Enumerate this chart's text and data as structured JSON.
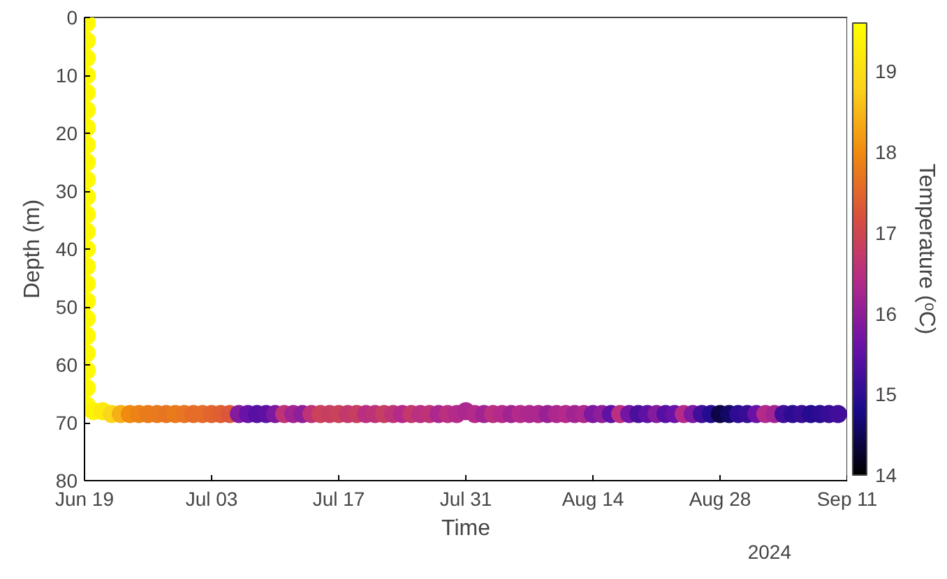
{
  "chart_data": {
    "type": "scatter",
    "xlabel": "Time",
    "ylabel": "Depth (m)",
    "clabel": "Temperature (ᵒC)",
    "annotations": [
      "2024"
    ],
    "xlim": [
      "2024-06-19",
      "2024-09-11"
    ],
    "xticks": [
      {
        "value": "2024-06-19",
        "label": "Jun 19"
      },
      {
        "value": "2024-07-03",
        "label": "Jul 03"
      },
      {
        "value": "2024-07-17",
        "label": "Jul 17"
      },
      {
        "value": "2024-07-31",
        "label": "Jul 31"
      },
      {
        "value": "2024-08-14",
        "label": "Aug 14"
      },
      {
        "value": "2024-08-28",
        "label": "Aug 28"
      },
      {
        "value": "2024-09-11",
        "label": "Sep 11"
      }
    ],
    "ylim": [
      80,
      0
    ],
    "yticks": [
      0,
      10,
      20,
      30,
      40,
      50,
      60,
      70,
      80
    ],
    "clim": [
      14,
      19.6
    ],
    "cticks": [
      14,
      15,
      16,
      17,
      18,
      19
    ],
    "grid": false,
    "marker": "circle",
    "x": [
      "2024-06-19T06:00",
      "2024-06-19T06:00",
      "2024-06-19T06:00",
      "2024-06-19T06:00",
      "2024-06-19T06:00",
      "2024-06-19T06:00",
      "2024-06-19T06:00",
      "2024-06-19T06:00",
      "2024-06-19T06:00",
      "2024-06-19T06:00",
      "2024-06-19T06:00",
      "2024-06-19T06:00",
      "2024-06-19T06:00",
      "2024-06-19T06:00",
      "2024-06-19T06:00",
      "2024-06-19T06:00",
      "2024-06-19T06:00",
      "2024-06-19T06:00",
      "2024-06-19T06:00",
      "2024-06-19T06:00",
      "2024-06-19T06:00",
      "2024-06-19T06:00",
      "2024-06-19T06:00",
      "2024-06-20",
      "2024-06-21",
      "2024-06-22",
      "2024-06-23",
      "2024-06-24",
      "2024-06-25",
      "2024-06-26",
      "2024-06-27",
      "2024-06-28",
      "2024-06-29",
      "2024-06-30",
      "2024-07-01",
      "2024-07-02",
      "2024-07-03",
      "2024-07-04",
      "2024-07-05",
      "2024-07-06",
      "2024-07-07",
      "2024-07-08",
      "2024-07-09",
      "2024-07-10",
      "2024-07-11",
      "2024-07-12",
      "2024-07-13",
      "2024-07-14",
      "2024-07-15",
      "2024-07-16",
      "2024-07-17",
      "2024-07-18",
      "2024-07-19",
      "2024-07-20",
      "2024-07-21",
      "2024-07-22",
      "2024-07-23",
      "2024-07-24",
      "2024-07-25",
      "2024-07-26",
      "2024-07-27",
      "2024-07-28",
      "2024-07-29",
      "2024-07-30",
      "2024-07-31",
      "2024-08-01",
      "2024-08-02",
      "2024-08-03",
      "2024-08-04",
      "2024-08-05",
      "2024-08-06",
      "2024-08-07",
      "2024-08-08",
      "2024-08-09",
      "2024-08-10",
      "2024-08-11",
      "2024-08-12",
      "2024-08-13",
      "2024-08-14",
      "2024-08-15",
      "2024-08-16",
      "2024-08-17",
      "2024-08-18",
      "2024-08-19",
      "2024-08-20",
      "2024-08-21",
      "2024-08-22",
      "2024-08-23",
      "2024-08-24",
      "2024-08-25",
      "2024-08-26",
      "2024-08-27",
      "2024-08-28",
      "2024-08-29",
      "2024-08-30",
      "2024-08-31",
      "2024-09-01",
      "2024-09-02",
      "2024-09-03",
      "2024-09-04",
      "2024-09-05",
      "2024-09-06",
      "2024-09-07",
      "2024-09-08",
      "2024-09-09",
      "2024-09-10"
    ],
    "values": [
      1,
      4,
      7,
      10,
      13,
      16,
      19,
      22,
      25,
      28,
      31,
      34,
      37,
      40,
      43,
      46,
      49,
      52,
      55,
      58,
      61,
      64,
      67,
      68,
      68,
      68.5,
      68.5,
      68.5,
      68.5,
      68.5,
      68.5,
      68.5,
      68.5,
      68.5,
      68.5,
      68.5,
      68.5,
      68.5,
      68.5,
      68.5,
      68.5,
      68.5,
      68.5,
      68.5,
      68.5,
      68.5,
      68.5,
      68.5,
      68.5,
      68.5,
      68.5,
      68.5,
      68.5,
      68.5,
      68.5,
      68.5,
      68.5,
      68.5,
      68.5,
      68.5,
      68.5,
      68.5,
      68.5,
      68.5,
      68,
      68.5,
      68.5,
      68.5,
      68.5,
      68.5,
      68.5,
      68.5,
      68.5,
      68.5,
      68.5,
      68.5,
      68.5,
      68.5,
      68.5,
      68.5,
      68.5,
      68.5,
      68.5,
      68.5,
      68.5,
      68.5,
      68.5,
      68.5,
      68.5,
      68.5,
      68.5,
      68.5,
      68.5,
      68.5,
      68.5,
      68.5,
      68.5,
      68.5,
      68.5,
      68.5,
      68.5,
      68.5,
      68.5,
      68.5,
      68.5,
      68.5
    ],
    "cvalues": [
      19.5,
      19.5,
      19.5,
      19.5,
      19.5,
      19.5,
      19.5,
      19.5,
      19.5,
      19.5,
      19.5,
      19.5,
      19.5,
      19.5,
      19.5,
      19.5,
      19.5,
      19.5,
      19.5,
      19.5,
      19.5,
      19.5,
      19.5,
      19.4,
      19.2,
      18.9,
      18.4,
      18.0,
      17.9,
      17.8,
      17.8,
      17.7,
      17.8,
      17.7,
      17.6,
      17.6,
      17.5,
      17.4,
      17.3,
      15.9,
      15.6,
      15.4,
      15.5,
      15.8,
      16.6,
      16.2,
      16.0,
      16.6,
      16.9,
      16.8,
      16.9,
      16.7,
      16.8,
      16.5,
      16.6,
      16.8,
      16.6,
      16.4,
      16.7,
      16.5,
      16.6,
      16.3,
      16.5,
      16.4,
      16.3,
      16.4,
      16.2,
      16.5,
      16.4,
      16.2,
      16.4,
      16.3,
      16.3,
      16.1,
      16.3,
      16.4,
      16.2,
      16.3,
      15.8,
      16.0,
      15.5,
      16.5,
      15.7,
      15.3,
      15.5,
      15.9,
      15.4,
      15.6,
      16.4,
      15.8,
      15.2,
      14.9,
      14.4,
      14.6,
      15.0,
      15.1,
      15.6,
      16.4,
      16.2,
      15.2,
      15.0,
      15.1,
      14.9,
      15.0,
      15.1,
      15.2
    ]
  }
}
